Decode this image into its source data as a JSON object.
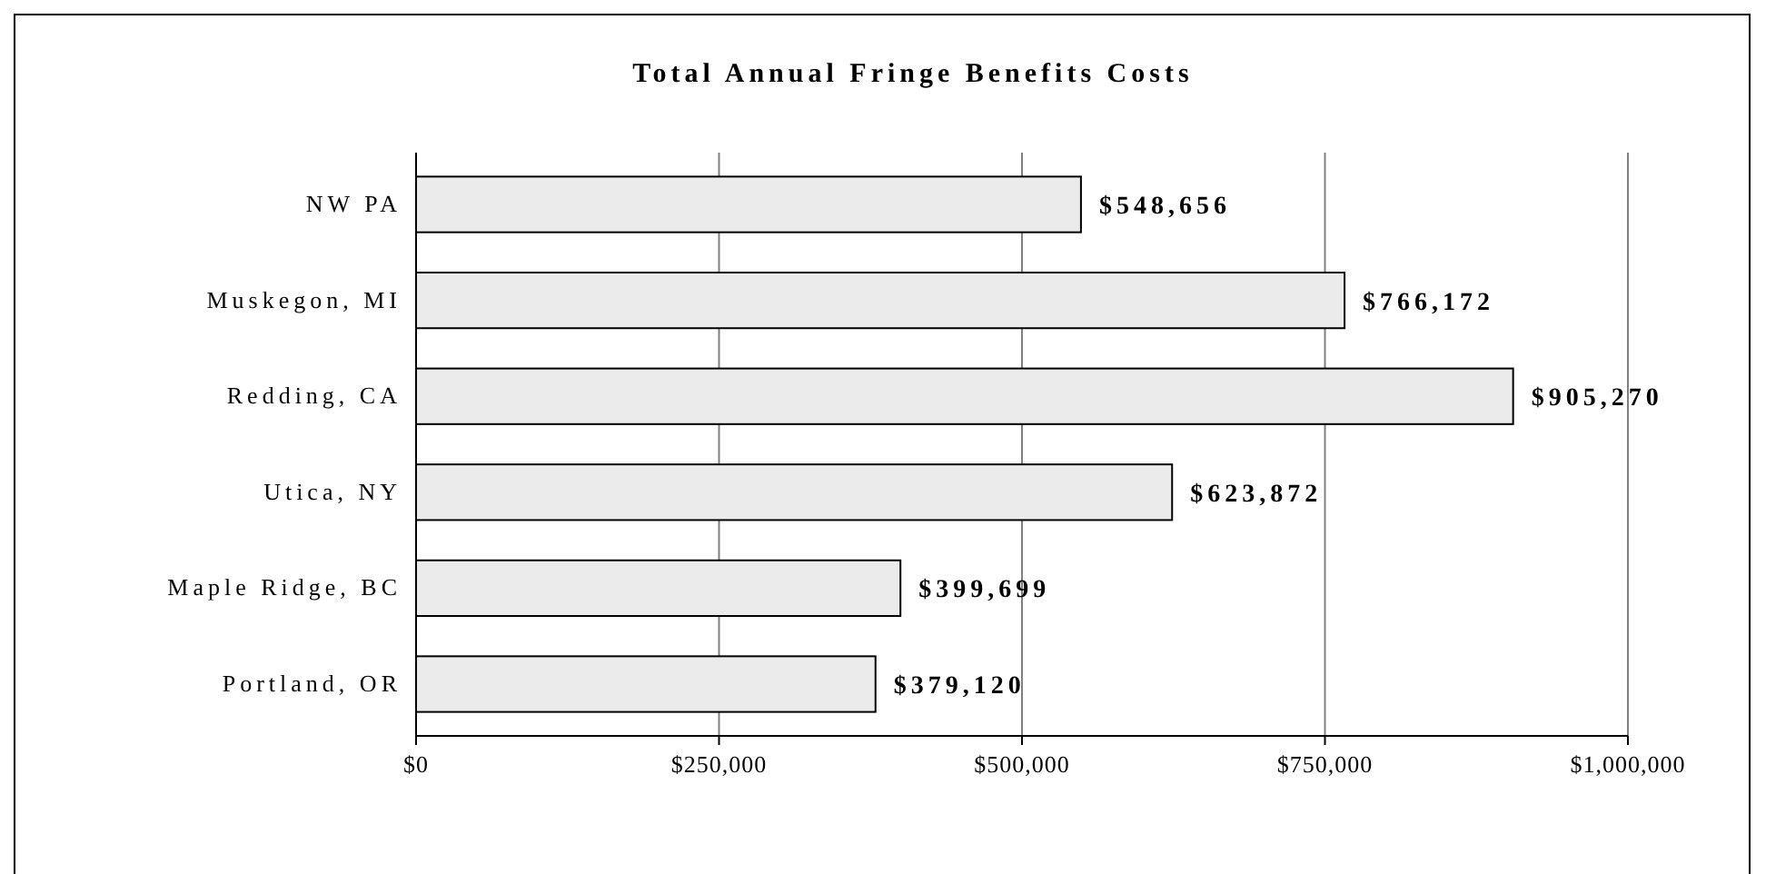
{
  "chart_data": {
    "type": "bar",
    "orientation": "horizontal",
    "title": "Total Annual Fringe Benefits Costs",
    "categories": [
      "NW PA",
      "Muskegon, MI",
      "Redding, CA",
      "Utica, NY",
      "Maple Ridge, BC",
      "Portland, OR"
    ],
    "values": [
      548656,
      766172,
      905270,
      623872,
      399699,
      379120
    ],
    "value_labels": [
      "$548,656",
      "$766,172",
      "$905,270",
      "$623,872",
      "$399,699",
      "$379,120"
    ],
    "color": "#ebebeb",
    "xlim": [
      0,
      1000000
    ],
    "xticks": [
      {
        "value": 0,
        "label": "$0"
      },
      {
        "value": 250000,
        "label": "$250,000"
      },
      {
        "value": 500000,
        "label": "$500,000"
      },
      {
        "value": 750000,
        "label": "$750,000"
      },
      {
        "value": 1000000,
        "label": "$1,000,000"
      }
    ],
    "grid": "x"
  }
}
